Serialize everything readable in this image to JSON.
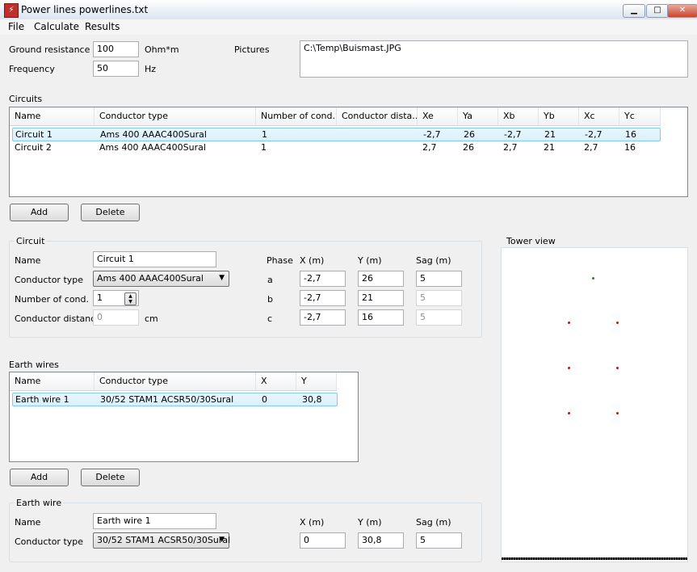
{
  "window": {
    "title": "Power lines powerlines.txt",
    "icon_glyph": "⚡",
    "minimize": "▁",
    "maximize": "□",
    "close": "✕"
  },
  "menu": {
    "items": [
      "File",
      "Calculate",
      "Results"
    ]
  },
  "top": {
    "ground_resistance_label": "Ground resistance",
    "ground_resistance_value": "100",
    "ground_resistance_unit": "Ohm*m",
    "frequency_label": "Frequency",
    "frequency_value": "50",
    "frequency_unit": "Hz",
    "pictures_label": "Pictures",
    "pictures_value": "C:\\Temp\\Buismast.JPG"
  },
  "circuits": {
    "label": "Circuits",
    "columns": [
      "Name",
      "Conductor type",
      "Number of cond.",
      "Conductor dista...",
      "Xe",
      "Ya",
      "Xb",
      "Yb",
      "Xc",
      "Yc"
    ],
    "rows": [
      [
        "Circuit 1",
        "Ams 400 AAAC400Sural",
        "1",
        "",
        "-2,7",
        "26",
        "-2,7",
        "21",
        "-2,7",
        "16"
      ],
      [
        "Circuit 2",
        "Ams 400 AAAC400Sural",
        "1",
        "",
        "2,7",
        "26",
        "2,7",
        "21",
        "2,7",
        "16"
      ]
    ],
    "add_label": "Add",
    "delete_label": "Delete"
  },
  "circuit": {
    "label": "Circuit",
    "name_label": "Name",
    "name_value": "Circuit 1",
    "conductor_type_label": "Conductor type",
    "conductor_type_value": "Ams 400 AAAC400Sural",
    "num_cond_label": "Number of cond.",
    "num_cond_value": "1",
    "cond_dist_label": "Conductor distance",
    "cond_dist_value": "0",
    "cond_dist_unit": "cm",
    "phase_header": "Phase",
    "x_header": "X (m)",
    "y_header": "Y (m)",
    "sag_header": "Sag (m)",
    "phases": [
      {
        "phase": "a",
        "x": "-2,7",
        "y": "26",
        "sag": "5"
      },
      {
        "phase": "b",
        "x": "-2,7",
        "y": "21",
        "sag": "5"
      },
      {
        "phase": "c",
        "x": "-2,7",
        "y": "16",
        "sag": "5"
      }
    ]
  },
  "earth_wires": {
    "label": "Earth wires",
    "columns": [
      "Name",
      "Conductor type",
      "X",
      "Y"
    ],
    "rows": [
      [
        "Earth wire 1",
        "30/52 STAM1 ACSR50/30Sural",
        "0",
        "30,8"
      ]
    ],
    "add_label": "Add",
    "delete_label": "Delete"
  },
  "earth_wire": {
    "label": "Earth wire",
    "name_label": "Name",
    "name_value": "Earth wire 1",
    "conductor_type_label": "Conductor type",
    "conductor_type_value": "30/52 STAM1 ACSR50/30Sural",
    "x_header": "X (m)",
    "y_header": "Y (m)",
    "sag_header": "Sag (m)",
    "x_value": "0",
    "y_value": "30,8",
    "sag_value": "5"
  },
  "tower_view": {
    "label": "Tower view",
    "earth_color": "#1f8a1f",
    "phase_color": "#d01010"
  }
}
